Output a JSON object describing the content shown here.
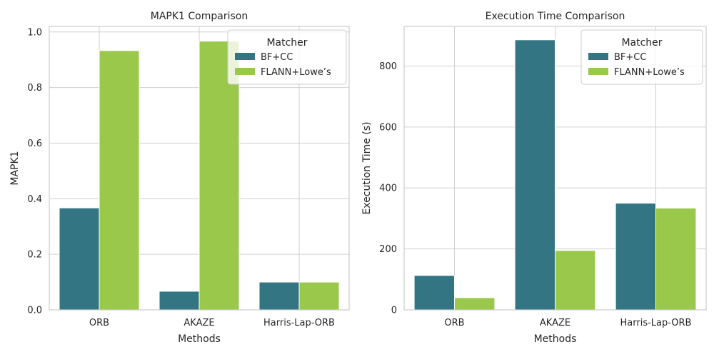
{
  "chart_data": [
    {
      "type": "bar",
      "title": "MAPK1 Comparison",
      "xlabel": "Methods",
      "ylabel": "MAPK1",
      "categories": [
        "ORB",
        "AKAZE",
        "Harris-Lap-ORB"
      ],
      "series": [
        {
          "name": "BF+CC",
          "values": [
            0.367,
            0.067,
            0.1
          ]
        },
        {
          "name": "FLANN+Lowe’s",
          "values": [
            0.933,
            0.967,
            0.1
          ]
        }
      ],
      "ylim": [
        0,
        1.02
      ],
      "yticks": [
        0.0,
        0.2,
        0.4,
        0.6,
        0.8,
        1.0
      ],
      "ytick_labels": [
        "0.0",
        "0.2",
        "0.4",
        "0.6",
        "0.8",
        "1.0"
      ],
      "grid": true,
      "legend": {
        "title": "Matcher",
        "position": "top-right"
      }
    },
    {
      "type": "bar",
      "title": "Execution Time Comparison",
      "xlabel": "Methods",
      "ylabel": "Execution Time (s)",
      "categories": [
        "ORB",
        "AKAZE",
        "Harris-Lap-ORB"
      ],
      "series": [
        {
          "name": "BF+CC",
          "values": [
            113,
            886,
            350
          ]
        },
        {
          "name": "FLANN+Lowe’s",
          "values": [
            40,
            195,
            334
          ]
        }
      ],
      "ylim": [
        0,
        930
      ],
      "yticks": [
        0,
        200,
        400,
        600,
        800
      ],
      "ytick_labels": [
        "0",
        "200",
        "400",
        "600",
        "800"
      ],
      "grid": true,
      "legend": {
        "title": "Matcher",
        "position": "top-right"
      }
    }
  ],
  "colors": {
    "series": [
      "#337583",
      "#9ac84b"
    ],
    "grid": "#d0d0d0",
    "spine": "#cccccc",
    "text": "#262626"
  }
}
